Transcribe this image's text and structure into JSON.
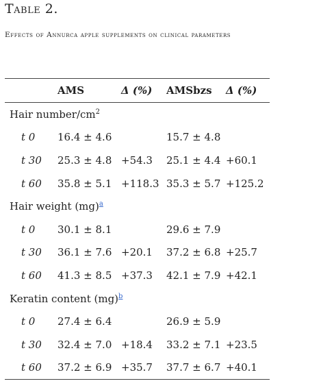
{
  "title": "Table 2.",
  "caption": "Effects of Annurca apple supplements on clinical parameters",
  "header": {
    "col0": "",
    "col1": "AMS",
    "col2": "Δ (%)",
    "col3": "AMSbzs",
    "col4": "Δ (%)"
  },
  "groups": [
    {
      "label": "Hair number/cm",
      "sup": "2",
      "rows": [
        {
          "t": "t 0",
          "ams": "16.4 ± 4.6",
          "d1": "",
          "amsbzs": "15.7 ± 4.8",
          "d2": ""
        },
        {
          "t": "t 30",
          "ams": "25.3 ± 4.8",
          "d1": "+54.3",
          "amsbzs": "25.1 ± 4.4",
          "d2": "+60.1"
        },
        {
          "t": "t 60",
          "ams": "35.8 ± 5.1",
          "d1": "+118.3",
          "amsbzs": "35.3 ± 5.7",
          "d2": "+125.2"
        }
      ]
    },
    {
      "label": "Hair weight (mg)",
      "sup": "a",
      "rows": [
        {
          "t": "t 0",
          "ams": "30.1 ± 8.1",
          "d1": "",
          "amsbzs": "29.6 ± 7.9",
          "d2": ""
        },
        {
          "t": "t 30",
          "ams": "36.1 ± 7.6",
          "d1": "+20.1",
          "amsbzs": "37.2 ± 6.8",
          "d2": "+25.7"
        },
        {
          "t": "t 60",
          "ams": "41.3 ± 8.5",
          "d1": "+37.3",
          "amsbzs": "42.1 ± 7.9",
          "d2": "+42.1"
        }
      ]
    },
    {
      "label": "Keratin content (mg)",
      "sup": "b",
      "rows": [
        {
          "t": "t 0",
          "ams": "27.4 ± 6.4",
          "d1": "",
          "amsbzs": "26.9 ± 5.9",
          "d2": ""
        },
        {
          "t": "t 30",
          "ams": "32.4 ± 7.0",
          "d1": "+18.4",
          "amsbzs": "33.2 ± 7.1",
          "d2": "+23.5"
        },
        {
          "t": "t 60",
          "ams": "37.2 ± 6.9",
          "d1": "+35.7",
          "amsbzs": "37.7 ± 6.7",
          "d2": "+40.1"
        }
      ]
    }
  ]
}
